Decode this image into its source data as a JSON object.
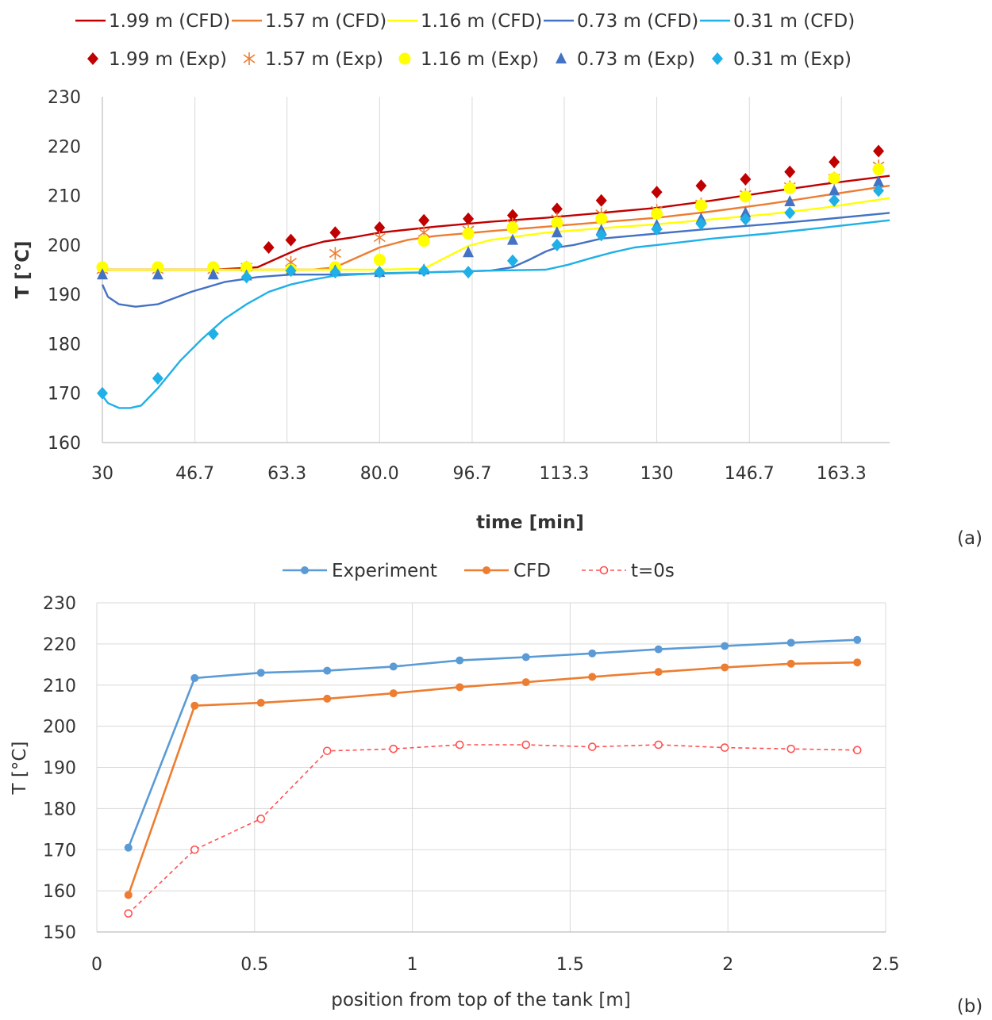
{
  "chart_data": [
    {
      "panel_label": "(a)",
      "type": "line",
      "xlabel": "time [min]",
      "ylabel": "T [°C]",
      "xlim": [
        30,
        172
      ],
      "ylim": [
        160,
        230
      ],
      "xticks": [
        "30",
        "46.7",
        "63.3",
        "80.0",
        "96.7",
        "113.3",
        "130",
        "146.7",
        "163.3"
      ],
      "yticks": [
        "160",
        "170",
        "180",
        "190",
        "200",
        "210",
        "220",
        "230"
      ],
      "grid": "vertical",
      "legend": "top",
      "colors": {
        "1.99": "#c00000",
        "1.57": "#ed7d31",
        "1.16": "#ffff00",
        "0.73": "#4472c4",
        "0.31": "#1fb0e8"
      },
      "series": [
        {
          "name": "1.99 m (CFD)",
          "kind": "line",
          "color": "#c00000",
          "x": [
            30,
            50,
            58,
            62,
            66,
            70,
            75,
            80,
            90,
            100,
            110,
            120,
            130,
            140,
            150,
            160,
            172
          ],
          "y": [
            195,
            195,
            195.5,
            197.5,
            199.5,
            200.7,
            201.5,
            202.5,
            203.7,
            204.7,
            205.5,
            206.5,
            207.5,
            209,
            210.7,
            212.3,
            214
          ]
        },
        {
          "name": "1.57 m (CFD)",
          "kind": "line",
          "color": "#ed7d31",
          "x": [
            30,
            60,
            68,
            72,
            76,
            80,
            85,
            90,
            100,
            110,
            120,
            130,
            140,
            150,
            160,
            172
          ],
          "y": [
            195,
            195,
            195,
            195.5,
            197.5,
            199.5,
            201,
            201.8,
            202.8,
            203.7,
            204.6,
            205.5,
            206.8,
            208.3,
            210,
            212
          ]
        },
        {
          "name": "1.16 m (CFD)",
          "kind": "line",
          "color": "#ffff00",
          "x": [
            30,
            60,
            80,
            88,
            92,
            96,
            100,
            110,
            120,
            130,
            140,
            150,
            160,
            172
          ],
          "y": [
            195,
            195,
            195,
            195.2,
            197.5,
            199.8,
            201,
            202.5,
            203.4,
            204.2,
            205.2,
            206.2,
            207.5,
            209.5
          ]
        },
        {
          "name": "0.73 m (CFD)",
          "kind": "line",
          "color": "#4472c4",
          "x": [
            30,
            31,
            33,
            36,
            40,
            46,
            52,
            58,
            64,
            70,
            80,
            90,
            100,
            104,
            107,
            110,
            112,
            115,
            120,
            130,
            140,
            150,
            160,
            172
          ],
          "y": [
            192,
            189.5,
            188,
            187.5,
            188,
            190.5,
            192.5,
            193.5,
            194,
            194,
            194.2,
            194.5,
            194.8,
            195.5,
            197,
            198.7,
            199.5,
            200,
            201.3,
            202.3,
            203.3,
            204.2,
            205.2,
            206.5
          ]
        },
        {
          "name": "0.31 m (CFD)",
          "kind": "line",
          "color": "#1fb0e8",
          "x": [
            30,
            31,
            33,
            35,
            37,
            40,
            44,
            48,
            52,
            56,
            60,
            64,
            68,
            72,
            80,
            90,
            100,
            110,
            114,
            118,
            122,
            126,
            130,
            140,
            150,
            160,
            172
          ],
          "y": [
            169.5,
            168,
            167,
            167,
            167.5,
            171,
            176.5,
            181,
            185,
            188,
            190.5,
            192,
            193,
            193.8,
            194.3,
            194.5,
            194.8,
            195,
            196,
            197.3,
            198.5,
            199.5,
            200,
            201.3,
            202.3,
            203.5,
            205
          ]
        },
        {
          "name": "1.99 m (Exp)",
          "kind": "marker",
          "marker": "diamond",
          "color": "#c00000",
          "x": [
            30,
            60,
            64,
            72,
            80,
            88,
            96,
            104,
            112,
            120,
            130,
            138,
            146,
            154,
            162,
            170
          ],
          "y": [
            195,
            199.5,
            201,
            202.5,
            203.5,
            205,
            205.3,
            206,
            207.3,
            209,
            210.7,
            212,
            213.3,
            214.8,
            216.8,
            219
          ]
        },
        {
          "name": "1.57 m (Exp)",
          "kind": "marker",
          "marker": "star",
          "color": "#ed7d31",
          "x": [
            30,
            40,
            50,
            56,
            64,
            72,
            80,
            88,
            96,
            104,
            112,
            120,
            130,
            138,
            146,
            154,
            162,
            170
          ],
          "y": [
            195,
            195,
            195,
            195.5,
            196.5,
            198.3,
            201.5,
            202.5,
            203,
            204.2,
            205.3,
            206.3,
            207,
            208.3,
            210.2,
            211.8,
            213.5,
            216
          ]
        },
        {
          "name": "1.16 m (Exp)",
          "kind": "marker",
          "marker": "circle",
          "color": "#ffff00",
          "x": [
            30,
            40,
            50,
            56,
            64,
            72,
            80,
            88,
            96,
            104,
            112,
            120,
            130,
            138,
            146,
            154,
            162,
            170
          ],
          "y": [
            195.5,
            195.5,
            195.5,
            195.5,
            195,
            195.5,
            197,
            200.8,
            202.3,
            203.5,
            204.5,
            205.3,
            206.3,
            208,
            209.8,
            211.5,
            213.5,
            215.3
          ]
        },
        {
          "name": "0.73 m (Exp)",
          "kind": "marker",
          "marker": "triangle",
          "color": "#4472c4",
          "x": [
            30,
            40,
            50,
            56,
            64,
            72,
            80,
            88,
            96,
            104,
            112,
            120,
            130,
            138,
            146,
            154,
            162,
            170
          ],
          "y": [
            194,
            194,
            194,
            193.8,
            194.8,
            194.8,
            194.5,
            195,
            198.5,
            201,
            202.5,
            203,
            204,
            205.3,
            206.5,
            208.8,
            211,
            212.8
          ]
        },
        {
          "name": "0.31 m (Exp)",
          "kind": "marker",
          "marker": "diamond",
          "color": "#1fb0e8",
          "x": [
            30,
            40,
            50,
            56,
            64,
            72,
            80,
            88,
            96,
            104,
            112,
            120,
            130,
            138,
            146,
            154,
            162,
            170
          ],
          "y": [
            170,
            173,
            182,
            193.5,
            194.8,
            194.5,
            194.5,
            194.8,
            194.5,
            196.8,
            200,
            202,
            203.2,
            204.3,
            205.2,
            206.5,
            209,
            211
          ]
        }
      ]
    },
    {
      "panel_label": "(b)",
      "type": "line",
      "xlabel": "position from top of the tank [m]",
      "ylabel": "T [°C]",
      "xlim": [
        0,
        2.5
      ],
      "ylim": [
        150,
        230
      ],
      "xticks": [
        "0",
        "0.5",
        "1",
        "1.5",
        "2",
        "2.5"
      ],
      "yticks": [
        "150",
        "160",
        "170",
        "180",
        "190",
        "200",
        "210",
        "220",
        "230"
      ],
      "grid": "both",
      "legend": "top",
      "x": [
        0.1,
        0.31,
        0.52,
        0.73,
        0.94,
        1.15,
        1.36,
        1.57,
        1.78,
        1.99,
        2.2,
        2.41
      ],
      "series": [
        {
          "name": "Experiment",
          "color": "#5b9bd5",
          "marker": "filled-circle",
          "dash": "solid",
          "values": [
            170.5,
            211.7,
            213,
            213.5,
            214.5,
            216,
            216.8,
            217.7,
            218.7,
            219.5,
            220.3,
            221
          ]
        },
        {
          "name": "CFD",
          "color": "#ed7d31",
          "marker": "filled-circle",
          "dash": "solid",
          "values": [
            159,
            205,
            205.7,
            206.7,
            208,
            209.5,
            210.7,
            212,
            213.2,
            214.3,
            215.2,
            215.5
          ]
        },
        {
          "name": "t=0s",
          "color": "#ff5050",
          "marker": "open-circle",
          "dash": "dashed",
          "values": [
            154.5,
            170,
            177.5,
            194,
            194.5,
            195.5,
            195.5,
            195,
            195.5,
            194.8,
            194.5,
            194.2
          ]
        }
      ]
    }
  ]
}
